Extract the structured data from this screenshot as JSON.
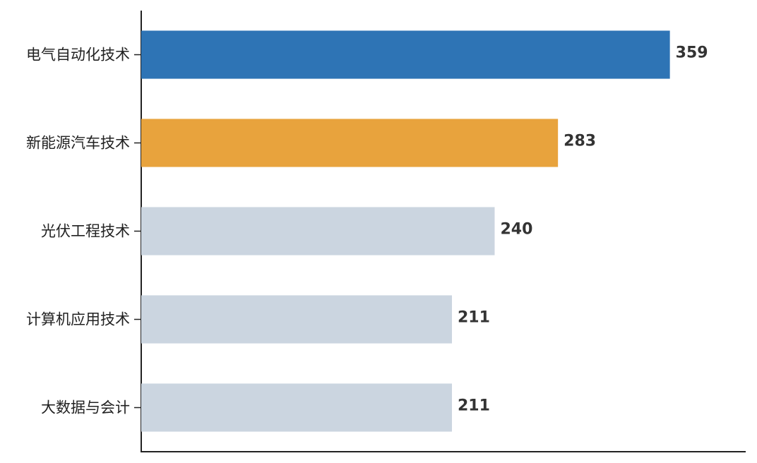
{
  "chart_data": {
    "type": "barh",
    "categories": [
      "电气自动化技术",
      "新能源汽车技术",
      "光伏工程技术",
      "计算机应用技术",
      "大数据与会计"
    ],
    "values": [
      359,
      283,
      240,
      211,
      211
    ],
    "colors": [
      "#2e74b5",
      "#e8a33d",
      "#cbd5e0",
      "#cbd5e0",
      "#cbd5e0"
    ],
    "xlim": [
      0,
      410
    ]
  }
}
